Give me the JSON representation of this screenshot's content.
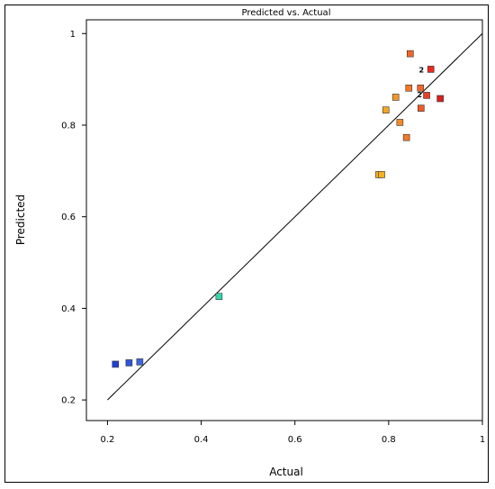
{
  "chart_data": {
    "type": "scatter",
    "title": "Predicted vs. Actual",
    "xlabel": "Actual",
    "ylabel": "Predicted",
    "xlim": [
      0.155,
      1.0
    ],
    "ylim": [
      0.155,
      1.03
    ],
    "x_ticks": [
      0.2,
      0.4,
      0.6,
      0.8,
      1
    ],
    "x_tick_labels": [
      "0.2",
      "0.4",
      "0.6",
      "0.8",
      "1"
    ],
    "y_ticks": [
      0.2,
      0.4,
      0.6,
      0.8,
      1
    ],
    "y_tick_labels": [
      "0.2",
      "0.4",
      "0.6",
      "0.8",
      "1"
    ],
    "reference_line": {
      "x": [
        0.2,
        1.0
      ],
      "y": [
        0.2,
        1.0
      ]
    },
    "grid": false,
    "points": [
      {
        "x": 0.217,
        "y": 0.278,
        "color": "#1f3fd6"
      },
      {
        "x": 0.246,
        "y": 0.281,
        "color": "#2e55dc"
      },
      {
        "x": 0.269,
        "y": 0.283,
        "color": "#3a66e0"
      },
      {
        "x": 0.438,
        "y": 0.426,
        "color": "#35d6b0"
      },
      {
        "x": 0.779,
        "y": 0.692,
        "color": "#f5b21f"
      },
      {
        "x": 0.785,
        "y": 0.692,
        "color": "#f5b21f"
      },
      {
        "x": 0.794,
        "y": 0.833,
        "color": "#f5a722"
      },
      {
        "x": 0.815,
        "y": 0.861,
        "color": "#f59826"
      },
      {
        "x": 0.824,
        "y": 0.806,
        "color": "#f48a28"
      },
      {
        "x": 0.838,
        "y": 0.773,
        "color": "#f47a26"
      },
      {
        "x": 0.843,
        "y": 0.881,
        "color": "#f47826"
      },
      {
        "x": 0.846,
        "y": 0.956,
        "color": "#f2652a"
      },
      {
        "x": 0.868,
        "y": 0.881,
        "color": "#f2652a"
      },
      {
        "x": 0.869,
        "y": 0.837,
        "color": "#ef5a2a"
      },
      {
        "x": 0.881,
        "y": 0.865,
        "color": "#ea3d24"
      },
      {
        "x": 0.89,
        "y": 0.922,
        "color": "#e8291f"
      },
      {
        "x": 0.91,
        "y": 0.858,
        "color": "#d91e1e"
      }
    ],
    "point_count_labels": [
      {
        "text": "2",
        "x": 0.87,
        "y": 0.921
      },
      {
        "text": "2",
        "x": 0.866,
        "y": 0.867
      }
    ]
  }
}
